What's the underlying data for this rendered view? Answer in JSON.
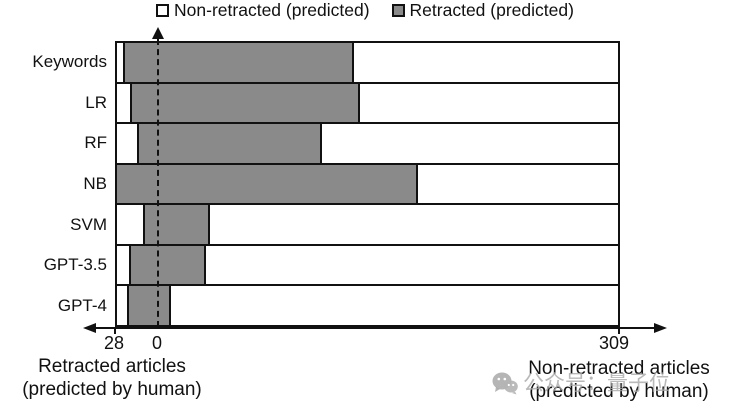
{
  "legend": {
    "items": [
      {
        "label": "Non-retracted (predicted)",
        "color": "#ffffff"
      },
      {
        "label": "Retracted (predicted)",
        "color": "#8a8a8a"
      }
    ]
  },
  "colors": {
    "retracted_fill": "#8a8a8a",
    "non_retracted_fill": "#ffffff",
    "border": "#111111",
    "watermark": "#a8a8a8"
  },
  "chart_data": {
    "type": "bar",
    "orientation": "horizontal",
    "stacked": true,
    "categories": [
      "Keywords",
      "LR",
      "RF",
      "NB",
      "SVM",
      "GPT-3.5",
      "GPT-4"
    ],
    "series": [
      {
        "name": "Non-retracted (predicted)",
        "section": "retracted-by-human (left of zero)",
        "color": "#ffffff",
        "values": [
          5,
          10,
          14,
          0,
          18,
          9,
          8
        ]
      },
      {
        "name": "Retracted (predicted)",
        "section": "retracted-by-human (left of zero)",
        "color": "#8a8a8a",
        "values": [
          23,
          18,
          14,
          28,
          10,
          19,
          20
        ]
      },
      {
        "name": "Retracted (predicted)",
        "section": "non-retracted-by-human (right of zero)",
        "color": "#8a8a8a",
        "values": [
          131,
          135,
          110,
          174,
          35,
          32,
          9
        ]
      },
      {
        "name": "Non-retracted (predicted)",
        "section": "non-retracted-by-human (right of zero)",
        "color": "#ffffff",
        "values": [
          178,
          174,
          199,
          135,
          274,
          277,
          300
        ]
      }
    ],
    "axis": {
      "left_section_total": 28,
      "right_section_total": 309,
      "ticks": [
        "28",
        "0",
        "309"
      ],
      "zero_line_style": "dashed-with-up-arrow",
      "left_label": [
        "Retracted articles",
        "(predicted by human)"
      ],
      "right_label": [
        "Non-retracted articles",
        "(predicted by human)"
      ]
    },
    "legend_position": "top",
    "grid": false
  },
  "watermark": {
    "text": "公众号：量子位"
  }
}
